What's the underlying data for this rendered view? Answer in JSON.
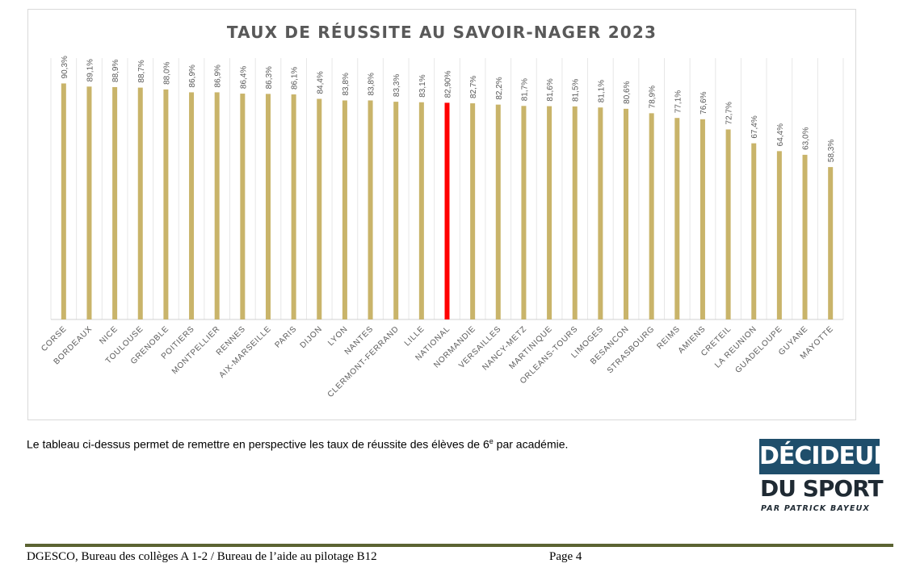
{
  "chart_data": {
    "type": "bar",
    "title": "TAUX DE RÉUSSITE AU SAVOIR-NAGER 2023",
    "xlabel": "",
    "ylabel": "",
    "ylim": [
      0,
      100
    ],
    "grid": true,
    "categories": [
      "CORSE",
      "BORDEAUX",
      "NICE",
      "TOULOUSE",
      "GRENOBLE",
      "POITIERS",
      "MONTPELLIER",
      "RENNES",
      "AIX-MARSEILLE",
      "PARIS",
      "DIJON",
      "LYON",
      "NANTES",
      "CLERMONT-FERRAND",
      "LILLE",
      "NATIONAL",
      "NORMANDIE",
      "VERSAILLES",
      "NANCY-METZ",
      "MARTINIQUE",
      "ORLEANS-TOURS",
      "LIMOGES",
      "BESANCON",
      "STRASBOURG",
      "REIMS",
      "AMIENS",
      "CRETEIL",
      "LA REUNION",
      "GUADELOUPE",
      "GUYANE",
      "MAYOTTE"
    ],
    "values": [
      90.3,
      89.1,
      88.9,
      88.7,
      88.0,
      86.9,
      86.9,
      86.4,
      86.3,
      86.1,
      84.4,
      83.8,
      83.8,
      83.3,
      83.1,
      82.9,
      82.7,
      82.2,
      81.7,
      81.6,
      81.5,
      81.1,
      80.6,
      78.9,
      77.1,
      76.6,
      72.7,
      67.4,
      64.4,
      63.0,
      58.3
    ],
    "value_labels": [
      "90,3%",
      "89,1%",
      "88,9%",
      "88,7%",
      "88,0%",
      "86,9%",
      "86,9%",
      "86,4%",
      "86,3%",
      "86,1%",
      "84,4%",
      "83,8%",
      "83,8%",
      "83,3%",
      "83,1%",
      "82,90%",
      "82,7%",
      "82,2%",
      "81,7%",
      "81,6%",
      "81,5%",
      "81,1%",
      "80,6%",
      "78,9%",
      "77,1%",
      "76,6%",
      "72,7%",
      "67,4%",
      "64,4%",
      "63,0%",
      "58,3%"
    ],
    "highlight_index": 15,
    "colors": {
      "bar": "#c9b46a",
      "highlight": "#ff0000",
      "grid": "#e7e7e7",
      "axis": "#d0d0d0",
      "title": "#595959",
      "label": "#595959"
    }
  },
  "caption": {
    "before": "Le tableau ci-dessus permet de remettre en perspective les taux de réussite des élèves de 6",
    "sup": "e",
    "after": " par académie."
  },
  "logo": {
    "line1": "DÉCIDEURS",
    "line2": "DU SPORT",
    "byline": "PAR PATRICK BAYEUX"
  },
  "footer": {
    "left": "DGESCO, Bureau des collèges A 1-2 / Bureau de l’aide au pilotage B12",
    "page": "Page 4"
  }
}
